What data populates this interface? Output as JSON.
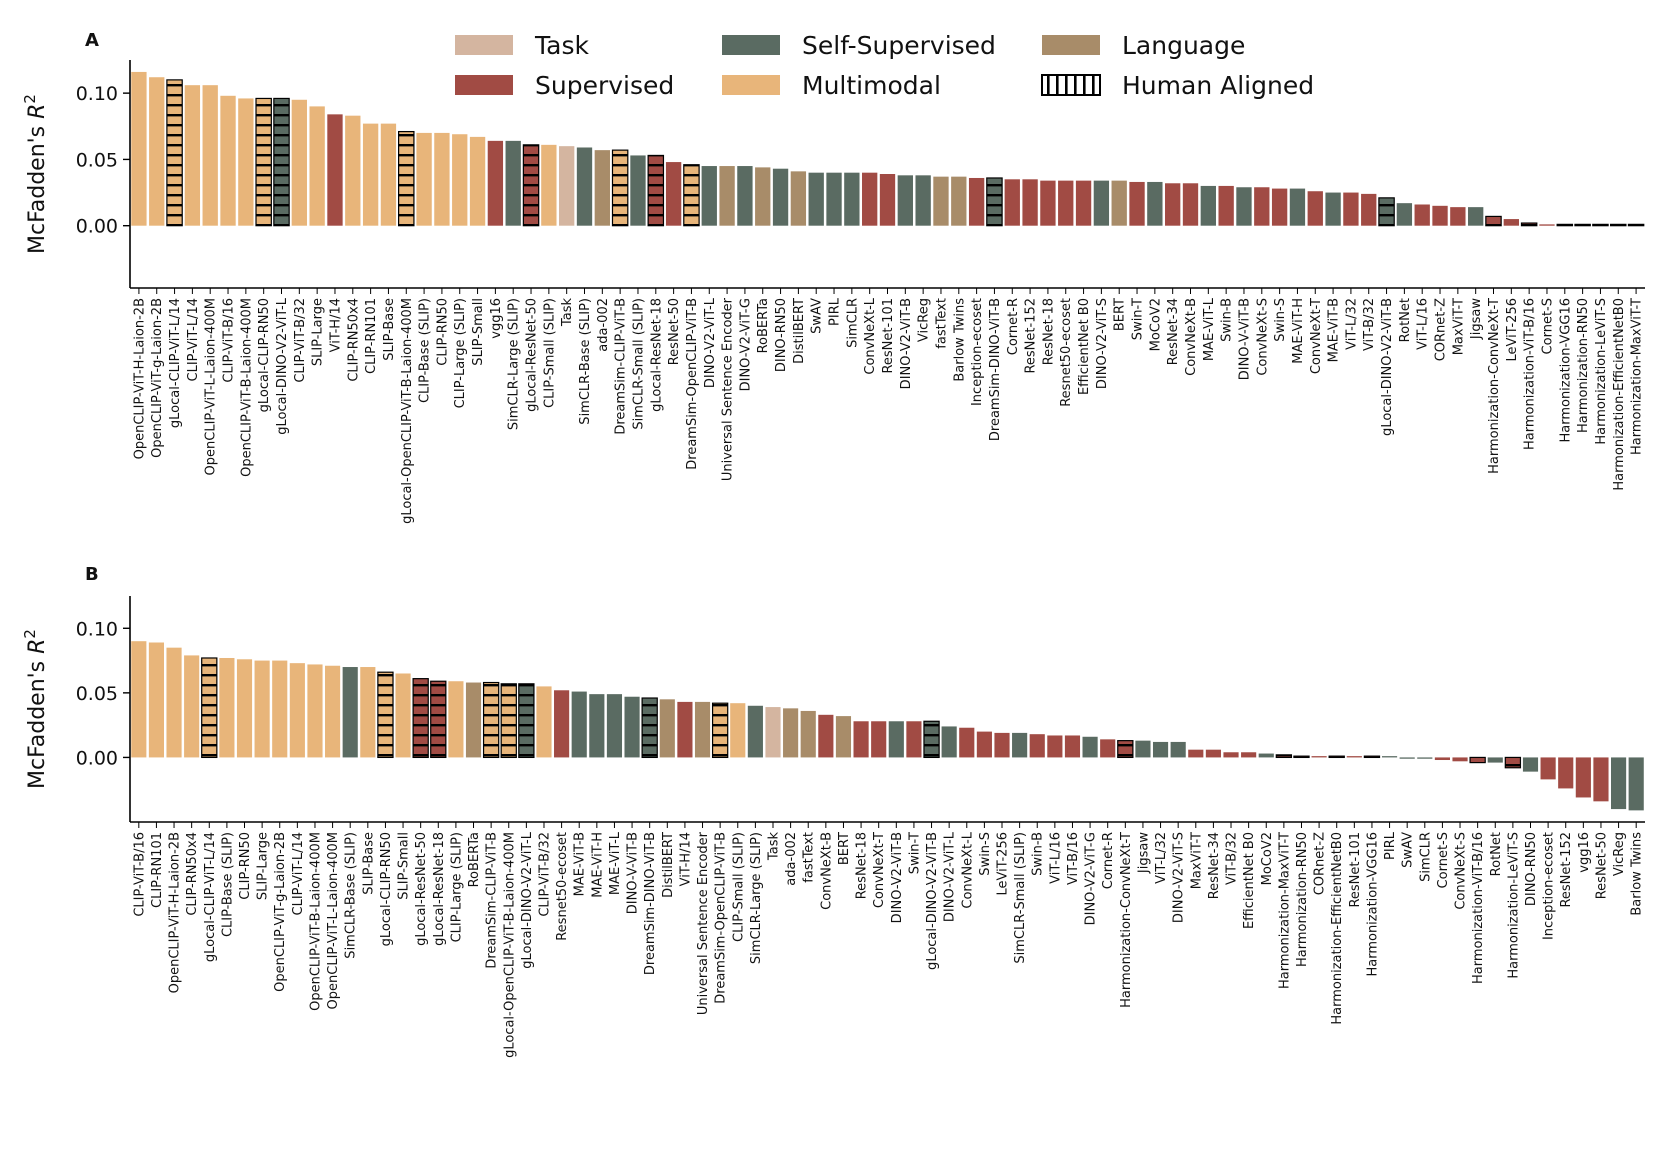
{
  "legend": {
    "placement": "top-center",
    "items": [
      {
        "label": "Task",
        "color": "#D4B5A0"
      },
      {
        "label": "Self-Supervised",
        "color": "#5A6B62"
      },
      {
        "label": "Language",
        "color": "#A88C69"
      },
      {
        "label": "Supervised",
        "color": "#A14B44"
      },
      {
        "label": "Multimodal",
        "color": "#E8B57A"
      },
      {
        "label": "Human Aligned",
        "pattern": "hatched"
      }
    ]
  },
  "category_colors": {
    "T": "#D4B5A0",
    "Ss": "#5A6B62",
    "L": "#A88C69",
    "S": "#A14B44",
    "M": "#E8B57A"
  },
  "chart_data": [
    {
      "type": "bar",
      "panel": "A",
      "ylabel_text": "McFadden's ",
      "ylabel_italic": "R",
      "ylabel_sup": "2",
      "yticks": [
        "0.00",
        "0.05",
        "0.10"
      ],
      "ytick_values": [
        0,
        0.05,
        0.1
      ],
      "ylim": [
        -0.047,
        0.125
      ],
      "categories": [
        "OpenCLIP-ViT-H-Laion-2B",
        "OpenCLIP-ViT-g-Laion-2B",
        "gLocal-CLIP-ViT-L/14",
        "CLIP-ViT-L/14",
        "OpenCLIP-ViT-L-Laion-400M",
        "CLIP-ViT-B/16",
        "OpenCLIP-ViT-B-Laion-400M",
        "gLocal-CLIP-RN50",
        "gLocal-DINO-V2-ViT-L",
        "CLIP-ViT-B/32",
        "SLIP-Large",
        "ViT-H/14",
        "CLIP-RN50x4",
        "CLIP-RN101",
        "SLIP-Base",
        "gLocal-OpenCLIP-ViT-B-Laion-400M",
        "CLIP-Base (SLIP)",
        "CLIP-RN50",
        "CLIP-Large (SLIP)",
        "SLIP-Small",
        "vgg16",
        "SimCLR-Large (SLIP)",
        "gLocal-ResNet-50",
        "CLIP-Small (SLIP)",
        "Task",
        "SimCLR-Base (SLIP)",
        "ada-002",
        "DreamSim-CLIP-ViT-B",
        "SimCLR-Small (SLIP)",
        "gLocal-ResNet-18",
        "ResNet-50",
        "DreamSim-OpenCLIP-ViT-B",
        "DINO-V2-ViT-L",
        "Universal Sentence Encoder",
        "DINO-V2-ViT-G",
        "RoBERTa",
        "DINO-RN50",
        "DistilBERT",
        "SwAV",
        "PIRL",
        "SimCLR",
        "ConvNeXt-L",
        "ResNet-101",
        "DINO-V2-ViT-B",
        "VicReg",
        "fastText",
        "Barlow Twins",
        "Inception-ecoset",
        "DreamSim-DINO-ViT-B",
        "Cornet-R",
        "ResNet-152",
        "ResNet-18",
        "Resnet50-ecoset",
        "EfficientNet B0",
        "DINO-V2-ViT-S",
        "BERT",
        "Swin-T",
        "MoCoV2",
        "ResNet-34",
        "ConvNeXt-B",
        "MAE-ViT-L",
        "Swin-B",
        "DINO-V-ViT-B",
        "ConvNeXt-S",
        "Swin-S",
        "MAE-ViT-H",
        "ConvNeXt-T",
        "MAE-ViT-B",
        "ViT-L/32",
        "ViT-B/32",
        "gLocal-DINO-V2-ViT-B",
        "RotNet",
        "ViT-L/16",
        "CORnet-Z",
        "MaxViT-T",
        "Jigsaw",
        "Harmonization-ConvNeXt-T",
        "LeViT-256",
        "Harmonization-ViT-B/16",
        "Cornet-S",
        "Harmonization-VGG16",
        "Harmonization-RN50",
        "Harmonization-LeViT-S",
        "Harmonization-EfficientNetB0",
        "Harmonization-MaxViT-T"
      ],
      "values": [
        0.116,
        0.112,
        0.11,
        0.106,
        0.106,
        0.098,
        0.096,
        0.096,
        0.096,
        0.095,
        0.09,
        0.084,
        0.083,
        0.077,
        0.077,
        0.071,
        0.07,
        0.07,
        0.069,
        0.067,
        0.064,
        0.064,
        0.061,
        0.061,
        0.06,
        0.059,
        0.057,
        0.057,
        0.053,
        0.053,
        0.048,
        0.046,
        0.045,
        0.045,
        0.045,
        0.044,
        0.043,
        0.041,
        0.04,
        0.04,
        0.04,
        0.04,
        0.039,
        0.038,
        0.038,
        0.037,
        0.037,
        0.036,
        0.036,
        0.035,
        0.035,
        0.034,
        0.034,
        0.034,
        0.034,
        0.034,
        0.033,
        0.033,
        0.032,
        0.032,
        0.03,
        0.03,
        0.029,
        0.029,
        0.028,
        0.028,
        0.026,
        0.025,
        0.025,
        0.024,
        0.021,
        0.017,
        0.016,
        0.015,
        0.014,
        0.014,
        0.007,
        0.005,
        0.002,
        0.001,
        0.001,
        0.001,
        0.001,
        0.001,
        0.001
      ],
      "groups": [
        "M",
        "M",
        "M",
        "M",
        "M",
        "M",
        "M",
        "M",
        "Ss",
        "M",
        "M",
        "S",
        "M",
        "M",
        "M",
        "M",
        "M",
        "M",
        "M",
        "M",
        "S",
        "Ss",
        "S",
        "M",
        "T",
        "Ss",
        "L",
        "M",
        "Ss",
        "S",
        "S",
        "M",
        "Ss",
        "L",
        "Ss",
        "L",
        "Ss",
        "L",
        "Ss",
        "Ss",
        "Ss",
        "S",
        "S",
        "Ss",
        "Ss",
        "L",
        "L",
        "S",
        "Ss",
        "S",
        "S",
        "S",
        "S",
        "S",
        "Ss",
        "L",
        "S",
        "Ss",
        "S",
        "S",
        "Ss",
        "S",
        "Ss",
        "S",
        "S",
        "Ss",
        "S",
        "Ss",
        "S",
        "S",
        "Ss",
        "Ss",
        "S",
        "S",
        "S",
        "Ss",
        "S",
        "S",
        "S",
        "S",
        "S",
        "S",
        "S",
        "S",
        "S"
      ],
      "human_aligned": [
        "gLocal-CLIP-ViT-L/14",
        "gLocal-CLIP-RN50",
        "gLocal-DINO-V2-ViT-L",
        "gLocal-OpenCLIP-ViT-B-Laion-400M",
        "gLocal-ResNet-50",
        "DreamSim-CLIP-ViT-B",
        "gLocal-ResNet-18",
        "DreamSim-OpenCLIP-ViT-B",
        "DreamSim-DINO-ViT-B",
        "gLocal-DINO-V2-ViT-B",
        "Harmonization-ConvNeXt-T",
        "Harmonization-ViT-B/16",
        "Harmonization-VGG16",
        "Harmonization-RN50",
        "Harmonization-LeViT-S",
        "Harmonization-EfficientNetB0",
        "Harmonization-MaxViT-T"
      ]
    },
    {
      "type": "bar",
      "panel": "B",
      "ylabel_text": "McFadden's ",
      "ylabel_italic": "R",
      "ylabel_sup": "2",
      "yticks": [
        "0.00",
        "0.05",
        "0.10"
      ],
      "ytick_values": [
        0,
        0.05,
        0.1
      ],
      "ylim": [
        -0.05,
        0.125
      ],
      "categories": [
        "CLIP-ViT-B/16",
        "CLIP-RN101",
        "OpenCLIP-ViT-H-Laion-2B",
        "CLIP-RN50x4",
        "gLocal-CLIP-ViT-L/14",
        "CLIP-Base (SLIP)",
        "CLIP-RN50",
        "SLIP-Large",
        "OpenCLIP-ViT-g-Laion-2B",
        "CLIP-ViT-L/14",
        "OpenCLIP-ViT-B-Laion-400M",
        "OpenCLIP-ViT-L-Laion-400M",
        "SimCLR-Base (SLIP)",
        "SLIP-Base",
        "gLocal-CLIP-RN50",
        "SLIP-Small",
        "gLocal-ResNet-50",
        "gLocal-ResNet-18",
        "CLIP-Large (SLIP)",
        "RoBERTa",
        "DreamSim-CLIP-ViT-B",
        "gLocal-OpenCLIP-ViT-B-Laion-400M",
        "gLocal-DINO-V2-ViT-L",
        "CLIP-ViT-B/32",
        "Resnet50-ecoset",
        "MAE-ViT-B",
        "MAE-ViT-H",
        "MAE-ViT-L",
        "DINO-V-ViT-B",
        "DreamSim-DINO-ViT-B",
        "DistilBERT",
        "ViT-H/14",
        "Universal Sentence Encoder",
        "DreamSim-OpenCLIP-ViT-B",
        "CLIP-Small (SLIP)",
        "SimCLR-Large (SLIP)",
        "Task",
        "ada-002",
        "fastText",
        "ConvNeXt-B",
        "BERT",
        "ResNet-18",
        "ConvNeXt-T",
        "DINO-V2-ViT-B",
        "Swin-T",
        "gLocal-DINO-V2-ViT-B",
        "DINO-V2-ViT-L",
        "ConvNeXt-L",
        "Swin-S",
        "LeViT-256",
        "SimCLR-Small (SLIP)",
        "Swin-B",
        "ViT-L/16",
        "ViT-B/16",
        "DINO-V2-ViT-G",
        "Cornet-R",
        "Harmonization-ConvNeXt-T",
        "Jigsaw",
        "ViT-L/32",
        "DINO-V2-ViT-S",
        "MaxViT-T",
        "ResNet-34",
        "ViT-B/32",
        "EfficientNet B0",
        "MoCoV2",
        "Harmonization-MaxViT-T",
        "Harmonization-RN50",
        "CORnet-Z",
        "Harmonization-EfficientNetB0",
        "ResNet-101",
        "Harmonization-VGG16",
        "PIRL",
        "SwAV",
        "SimCLR",
        "Cornet-S",
        "ConvNeXt-S",
        "Harmonization-ViT-B/16",
        "RotNet",
        "Harmonization-LeViT-S",
        "DINO-RN50",
        "Inception-ecoset",
        "ResNet-152",
        "vgg16",
        "ResNet-50",
        "VicReg",
        "Barlow Twins"
      ],
      "values": [
        0.09,
        0.089,
        0.085,
        0.079,
        0.077,
        0.077,
        0.076,
        0.075,
        0.075,
        0.073,
        0.072,
        0.071,
        0.07,
        0.07,
        0.066,
        0.065,
        0.061,
        0.059,
        0.059,
        0.058,
        0.058,
        0.057,
        0.057,
        0.055,
        0.052,
        0.051,
        0.049,
        0.049,
        0.047,
        0.046,
        0.045,
        0.043,
        0.043,
        0.042,
        0.042,
        0.04,
        0.039,
        0.038,
        0.036,
        0.033,
        0.032,
        0.028,
        0.028,
        0.028,
        0.028,
        0.028,
        0.024,
        0.023,
        0.02,
        0.019,
        0.019,
        0.018,
        0.017,
        0.017,
        0.016,
        0.014,
        0.013,
        0.013,
        0.012,
        0.012,
        0.006,
        0.006,
        0.004,
        0.004,
        0.003,
        0.002,
        0.001,
        0.001,
        0.001,
        0.001,
        0.001,
        0.001,
        -0.001,
        -0.001,
        -0.002,
        -0.003,
        -0.004,
        -0.004,
        -0.008,
        -0.011,
        -0.017,
        -0.024,
        -0.031,
        -0.034,
        -0.04,
        -0.041
      ],
      "groups": [
        "M",
        "M",
        "M",
        "M",
        "M",
        "M",
        "M",
        "M",
        "M",
        "M",
        "M",
        "M",
        "Ss",
        "M",
        "M",
        "M",
        "S",
        "S",
        "M",
        "L",
        "M",
        "M",
        "Ss",
        "M",
        "S",
        "Ss",
        "Ss",
        "Ss",
        "Ss",
        "Ss",
        "L",
        "S",
        "L",
        "M",
        "M",
        "Ss",
        "T",
        "L",
        "L",
        "S",
        "L",
        "S",
        "S",
        "Ss",
        "S",
        "Ss",
        "Ss",
        "S",
        "S",
        "S",
        "Ss",
        "S",
        "S",
        "S",
        "Ss",
        "S",
        "S",
        "Ss",
        "Ss",
        "Ss",
        "S",
        "S",
        "S",
        "S",
        "Ss",
        "S",
        "S",
        "S",
        "S",
        "S",
        "S",
        "Ss",
        "Ss",
        "Ss",
        "S",
        "S",
        "S",
        "Ss",
        "S",
        "Ss",
        "S",
        "S",
        "S",
        "S",
        "Ss",
        "Ss"
      ],
      "human_aligned": [
        "gLocal-CLIP-ViT-L/14",
        "gLocal-CLIP-RN50",
        "gLocal-ResNet-50",
        "gLocal-ResNet-18",
        "DreamSim-CLIP-ViT-B",
        "gLocal-OpenCLIP-ViT-B-Laion-400M",
        "gLocal-DINO-V2-ViT-L",
        "DreamSim-DINO-ViT-B",
        "DreamSim-OpenCLIP-ViT-B",
        "gLocal-DINO-V2-ViT-B",
        "Harmonization-ConvNeXt-T",
        "Harmonization-MaxViT-T",
        "Harmonization-RN50",
        "Harmonization-EfficientNetB0",
        "Harmonization-VGG16",
        "Harmonization-ViT-B/16",
        "Harmonization-LeViT-S"
      ]
    }
  ]
}
